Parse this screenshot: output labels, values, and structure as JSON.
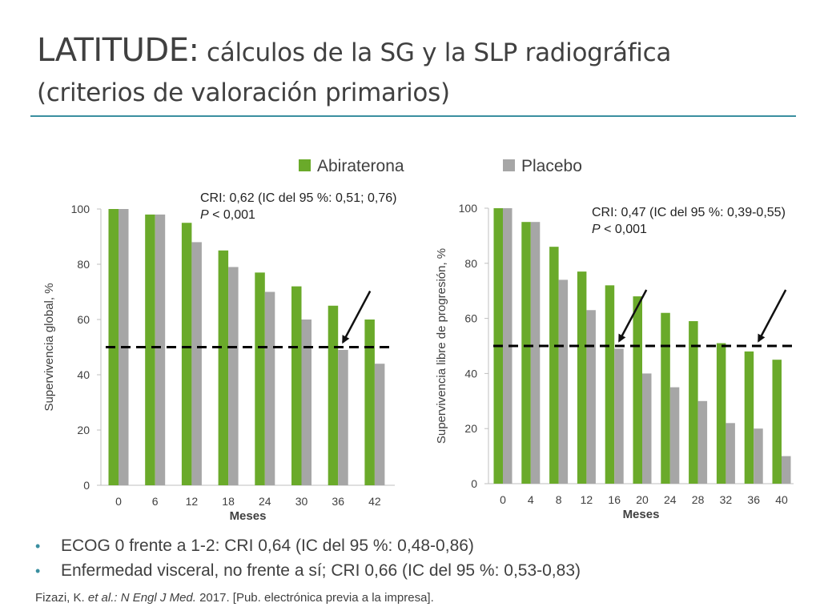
{
  "title": {
    "brand": "LATITUDE",
    "colon": ":",
    "rest": " cálculos de la SG y la SLP radiográfica",
    "line2": "(criterios de valoración primarios)"
  },
  "legend": {
    "abiraterona": "Abiraterona",
    "placebo": "Placebo"
  },
  "colors": {
    "abiraterona": "#6aaa2a",
    "placebo": "#a6a6a6",
    "accent": "#3a8fa0"
  },
  "annotations": {
    "left_line1": "CRI: 0,62 (IC del 95 %: 0,51; 0,76)",
    "left_p_label": "P",
    "left_p_value": " < 0,001",
    "right_line1": "CRI: 0,47 (IC del 95 %: 0,39-0,55)",
    "right_p_label": "P",
    "right_p_value": " < 0,001"
  },
  "chart_data": [
    {
      "type": "bar",
      "xlabel": "Meses",
      "ylabel": "Supervivencia global, %",
      "ylim": [
        0,
        100
      ],
      "yticks": [
        0,
        20,
        40,
        60,
        80,
        100
      ],
      "categories": [
        "0",
        "6",
        "12",
        "18",
        "24",
        "30",
        "36",
        "42"
      ],
      "series": [
        {
          "name": "Abiraterona",
          "values": [
            100,
            98,
            95,
            85,
            77,
            72,
            65,
            60
          ]
        },
        {
          "name": "Placebo",
          "values": [
            100,
            98,
            88,
            79,
            70,
            60,
            49,
            44
          ]
        }
      ],
      "reference_line": 50,
      "arrows_at_categories": [
        "36"
      ]
    },
    {
      "type": "bar",
      "xlabel": "Meses",
      "ylabel": "Supervivencia libre de progresión, %",
      "ylim": [
        0,
        100
      ],
      "yticks": [
        0,
        20,
        40,
        60,
        80,
        100
      ],
      "categories": [
        "0",
        "4",
        "8",
        "12",
        "16",
        "20",
        "24",
        "28",
        "32",
        "36",
        "40"
      ],
      "series": [
        {
          "name": "Abiraterona",
          "values": [
            100,
            95,
            86,
            77,
            72,
            68,
            62,
            59,
            51,
            48,
            45
          ]
        },
        {
          "name": "Placebo",
          "values": [
            100,
            95,
            74,
            63,
            49,
            40,
            35,
            30,
            22,
            20,
            10
          ]
        }
      ],
      "reference_line": 50,
      "arrows_at_categories": [
        "16",
        "36"
      ]
    }
  ],
  "bullets": [
    {
      "text": "ECOG 0 frente a 1-2: CRI 0,64 (IC del 95 %: 0,48-0,86)"
    },
    {
      "text": "Enfermedad visceral, no frente a sí; CRI 0,66 (IC del 95 %: 0,53-0,83)"
    }
  ],
  "reference": {
    "authors": "Fizazi, K. ",
    "etal": "et al.:",
    "journal": " N Engl J Med.",
    "rest": " 2017. [Pub. electrónica previa a la impresa]."
  }
}
